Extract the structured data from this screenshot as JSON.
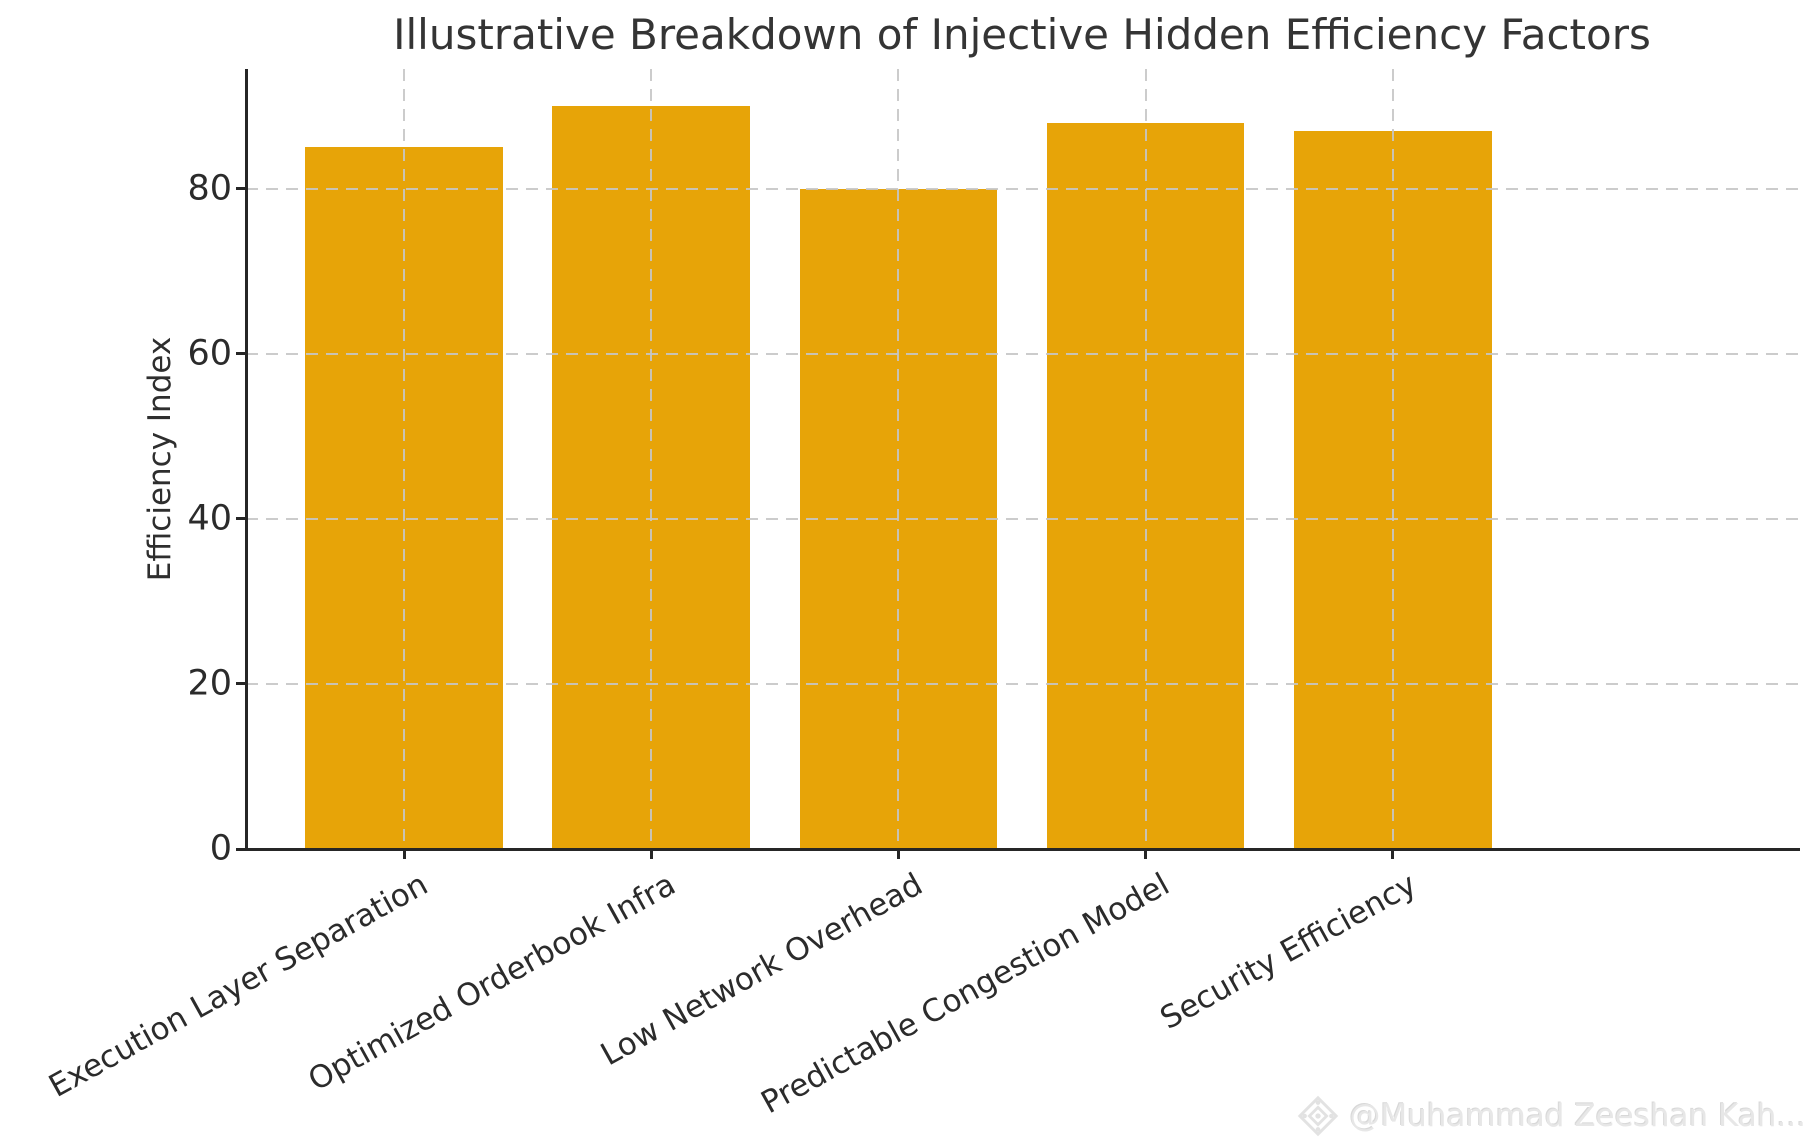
{
  "chart_data": {
    "type": "bar",
    "title": "Illustrative Breakdown of Injective Hidden Efficiency Factors",
    "xlabel": "",
    "ylabel": "Efficiency Index",
    "categories": [
      "Execution Layer Separation",
      "Optimized Orderbook Infra",
      "Low Network Overhead",
      "Predictable Congestion Model",
      "Security Efficiency"
    ],
    "values": [
      85,
      90,
      80,
      88,
      87
    ],
    "ylim": [
      0,
      94.5
    ],
    "yticks": [
      0,
      20,
      40,
      60,
      80
    ],
    "grid": {
      "style": "dashed",
      "horizontal": true,
      "vertical": true,
      "drawn_above_bars": true
    },
    "legend": "none",
    "colors": {
      "bar": "#E7A408",
      "grid": "#c6c6c6",
      "spine": "#262626",
      "text": "#2b2b2b"
    }
  },
  "watermark": {
    "icon": "ornamental-diamond-icon",
    "text": "@Muhammad Zeeshan Kah..."
  }
}
